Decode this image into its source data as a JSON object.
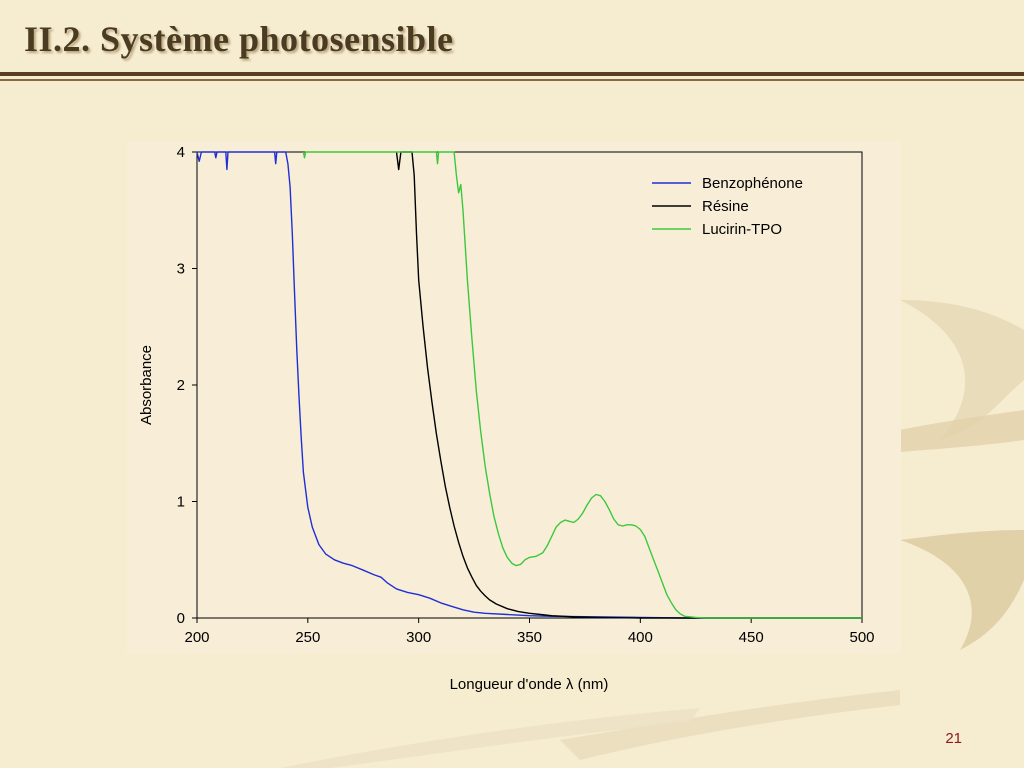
{
  "slide": {
    "title": "II.2. Système photosensible",
    "page_number": "21"
  },
  "colors": {
    "background": "#f6ecd0",
    "title": "#4a3b22",
    "rule": "#5a3f1e",
    "page_number": "#8a1a1a"
  },
  "chart_data": {
    "type": "line",
    "title": "",
    "xlabel": "Longueur d'onde λ (nm)",
    "ylabel": "Absorbance",
    "xlim": [
      200,
      500
    ],
    "ylim": [
      0,
      4
    ],
    "x_ticks": [
      200,
      250,
      300,
      350,
      400,
      450,
      500
    ],
    "y_ticks": [
      0,
      1,
      2,
      3,
      4
    ],
    "grid": false,
    "legend_position": "top-right",
    "series": [
      {
        "name": "Benzophénone",
        "color": "#1f2fd6",
        "points": [
          [
            200,
            4.0
          ],
          [
            201,
            3.92
          ],
          [
            202,
            4.0
          ],
          [
            208,
            4.0
          ],
          [
            208.5,
            3.95
          ],
          [
            209,
            4.0
          ],
          [
            213,
            4.0
          ],
          [
            213.5,
            3.85
          ],
          [
            214,
            4.0
          ],
          [
            235,
            4.0
          ],
          [
            235.5,
            3.9
          ],
          [
            236,
            4.0
          ],
          [
            240,
            4.0
          ],
          [
            241,
            3.9
          ],
          [
            242,
            3.7
          ],
          [
            243,
            3.3
          ],
          [
            244,
            2.8
          ],
          [
            245,
            2.3
          ],
          [
            246,
            1.9
          ],
          [
            247,
            1.55
          ],
          [
            248,
            1.25
          ],
          [
            250,
            0.95
          ],
          [
            252,
            0.78
          ],
          [
            255,
            0.63
          ],
          [
            258,
            0.55
          ],
          [
            262,
            0.5
          ],
          [
            266,
            0.47
          ],
          [
            270,
            0.45
          ],
          [
            275,
            0.41
          ],
          [
            280,
            0.37
          ],
          [
            283,
            0.35
          ],
          [
            286,
            0.3
          ],
          [
            290,
            0.25
          ],
          [
            295,
            0.22
          ],
          [
            300,
            0.2
          ],
          [
            305,
            0.17
          ],
          [
            310,
            0.13
          ],
          [
            315,
            0.1
          ],
          [
            320,
            0.07
          ],
          [
            325,
            0.05
          ],
          [
            330,
            0.04
          ],
          [
            340,
            0.03
          ],
          [
            350,
            0.02
          ],
          [
            360,
            0.015
          ],
          [
            380,
            0.01
          ],
          [
            400,
            0.005
          ],
          [
            420,
            0.0
          ],
          [
            500,
            0.0
          ]
        ]
      },
      {
        "name": "Résine",
        "color": "#000000",
        "points": [
          [
            290,
            4.0
          ],
          [
            291,
            3.85
          ],
          [
            292,
            4.0
          ],
          [
            297,
            4.0
          ],
          [
            298,
            3.8
          ],
          [
            299,
            3.3
          ],
          [
            300,
            2.9
          ],
          [
            302,
            2.5
          ],
          [
            304,
            2.15
          ],
          [
            306,
            1.85
          ],
          [
            308,
            1.58
          ],
          [
            310,
            1.35
          ],
          [
            312,
            1.13
          ],
          [
            314,
            0.95
          ],
          [
            316,
            0.79
          ],
          [
            318,
            0.65
          ],
          [
            320,
            0.53
          ],
          [
            322,
            0.43
          ],
          [
            324,
            0.35
          ],
          [
            326,
            0.28
          ],
          [
            328,
            0.23
          ],
          [
            330,
            0.19
          ],
          [
            332,
            0.155
          ],
          [
            335,
            0.12
          ],
          [
            340,
            0.08
          ],
          [
            345,
            0.055
          ],
          [
            350,
            0.04
          ],
          [
            355,
            0.03
          ],
          [
            360,
            0.02
          ],
          [
            370,
            0.01
          ],
          [
            380,
            0.005
          ],
          [
            400,
            0.0
          ],
          [
            500,
            0.0
          ]
        ]
      },
      {
        "name": "Lucirin-TPO",
        "color": "#3cc83c",
        "points": [
          [
            248,
            4.0
          ],
          [
            248.5,
            3.95
          ],
          [
            249,
            4.0
          ],
          [
            308,
            4.0
          ],
          [
            308.5,
            3.9
          ],
          [
            309,
            4.0
          ],
          [
            316,
            4.0
          ],
          [
            317,
            3.8
          ],
          [
            318,
            3.65
          ],
          [
            319,
            3.72
          ],
          [
            320,
            3.5
          ],
          [
            321,
            3.2
          ],
          [
            322,
            2.9
          ],
          [
            324,
            2.4
          ],
          [
            326,
            1.95
          ],
          [
            328,
            1.6
          ],
          [
            330,
            1.3
          ],
          [
            332,
            1.07
          ],
          [
            334,
            0.87
          ],
          [
            336,
            0.72
          ],
          [
            338,
            0.6
          ],
          [
            340,
            0.52
          ],
          [
            342,
            0.47
          ],
          [
            344,
            0.45
          ],
          [
            346,
            0.46
          ],
          [
            348,
            0.5
          ],
          [
            350,
            0.52
          ],
          [
            353,
            0.53
          ],
          [
            356,
            0.56
          ],
          [
            358,
            0.62
          ],
          [
            360,
            0.7
          ],
          [
            362,
            0.78
          ],
          [
            364,
            0.82
          ],
          [
            366,
            0.84
          ],
          [
            368,
            0.83
          ],
          [
            370,
            0.82
          ],
          [
            372,
            0.85
          ],
          [
            374,
            0.9
          ],
          [
            376,
            0.97
          ],
          [
            378,
            1.03
          ],
          [
            380,
            1.06
          ],
          [
            382,
            1.05
          ],
          [
            384,
            1.0
          ],
          [
            386,
            0.93
          ],
          [
            388,
            0.85
          ],
          [
            390,
            0.8
          ],
          [
            392,
            0.79
          ],
          [
            394,
            0.8
          ],
          [
            396,
            0.8
          ],
          [
            398,
            0.79
          ],
          [
            400,
            0.76
          ],
          [
            402,
            0.7
          ],
          [
            404,
            0.6
          ],
          [
            406,
            0.5
          ],
          [
            408,
            0.4
          ],
          [
            410,
            0.3
          ],
          [
            412,
            0.2
          ],
          [
            414,
            0.13
          ],
          [
            416,
            0.07
          ],
          [
            418,
            0.035
          ],
          [
            420,
            0.015
          ],
          [
            425,
            0.005
          ],
          [
            430,
            0.0
          ],
          [
            500,
            0.0
          ]
        ]
      }
    ]
  }
}
